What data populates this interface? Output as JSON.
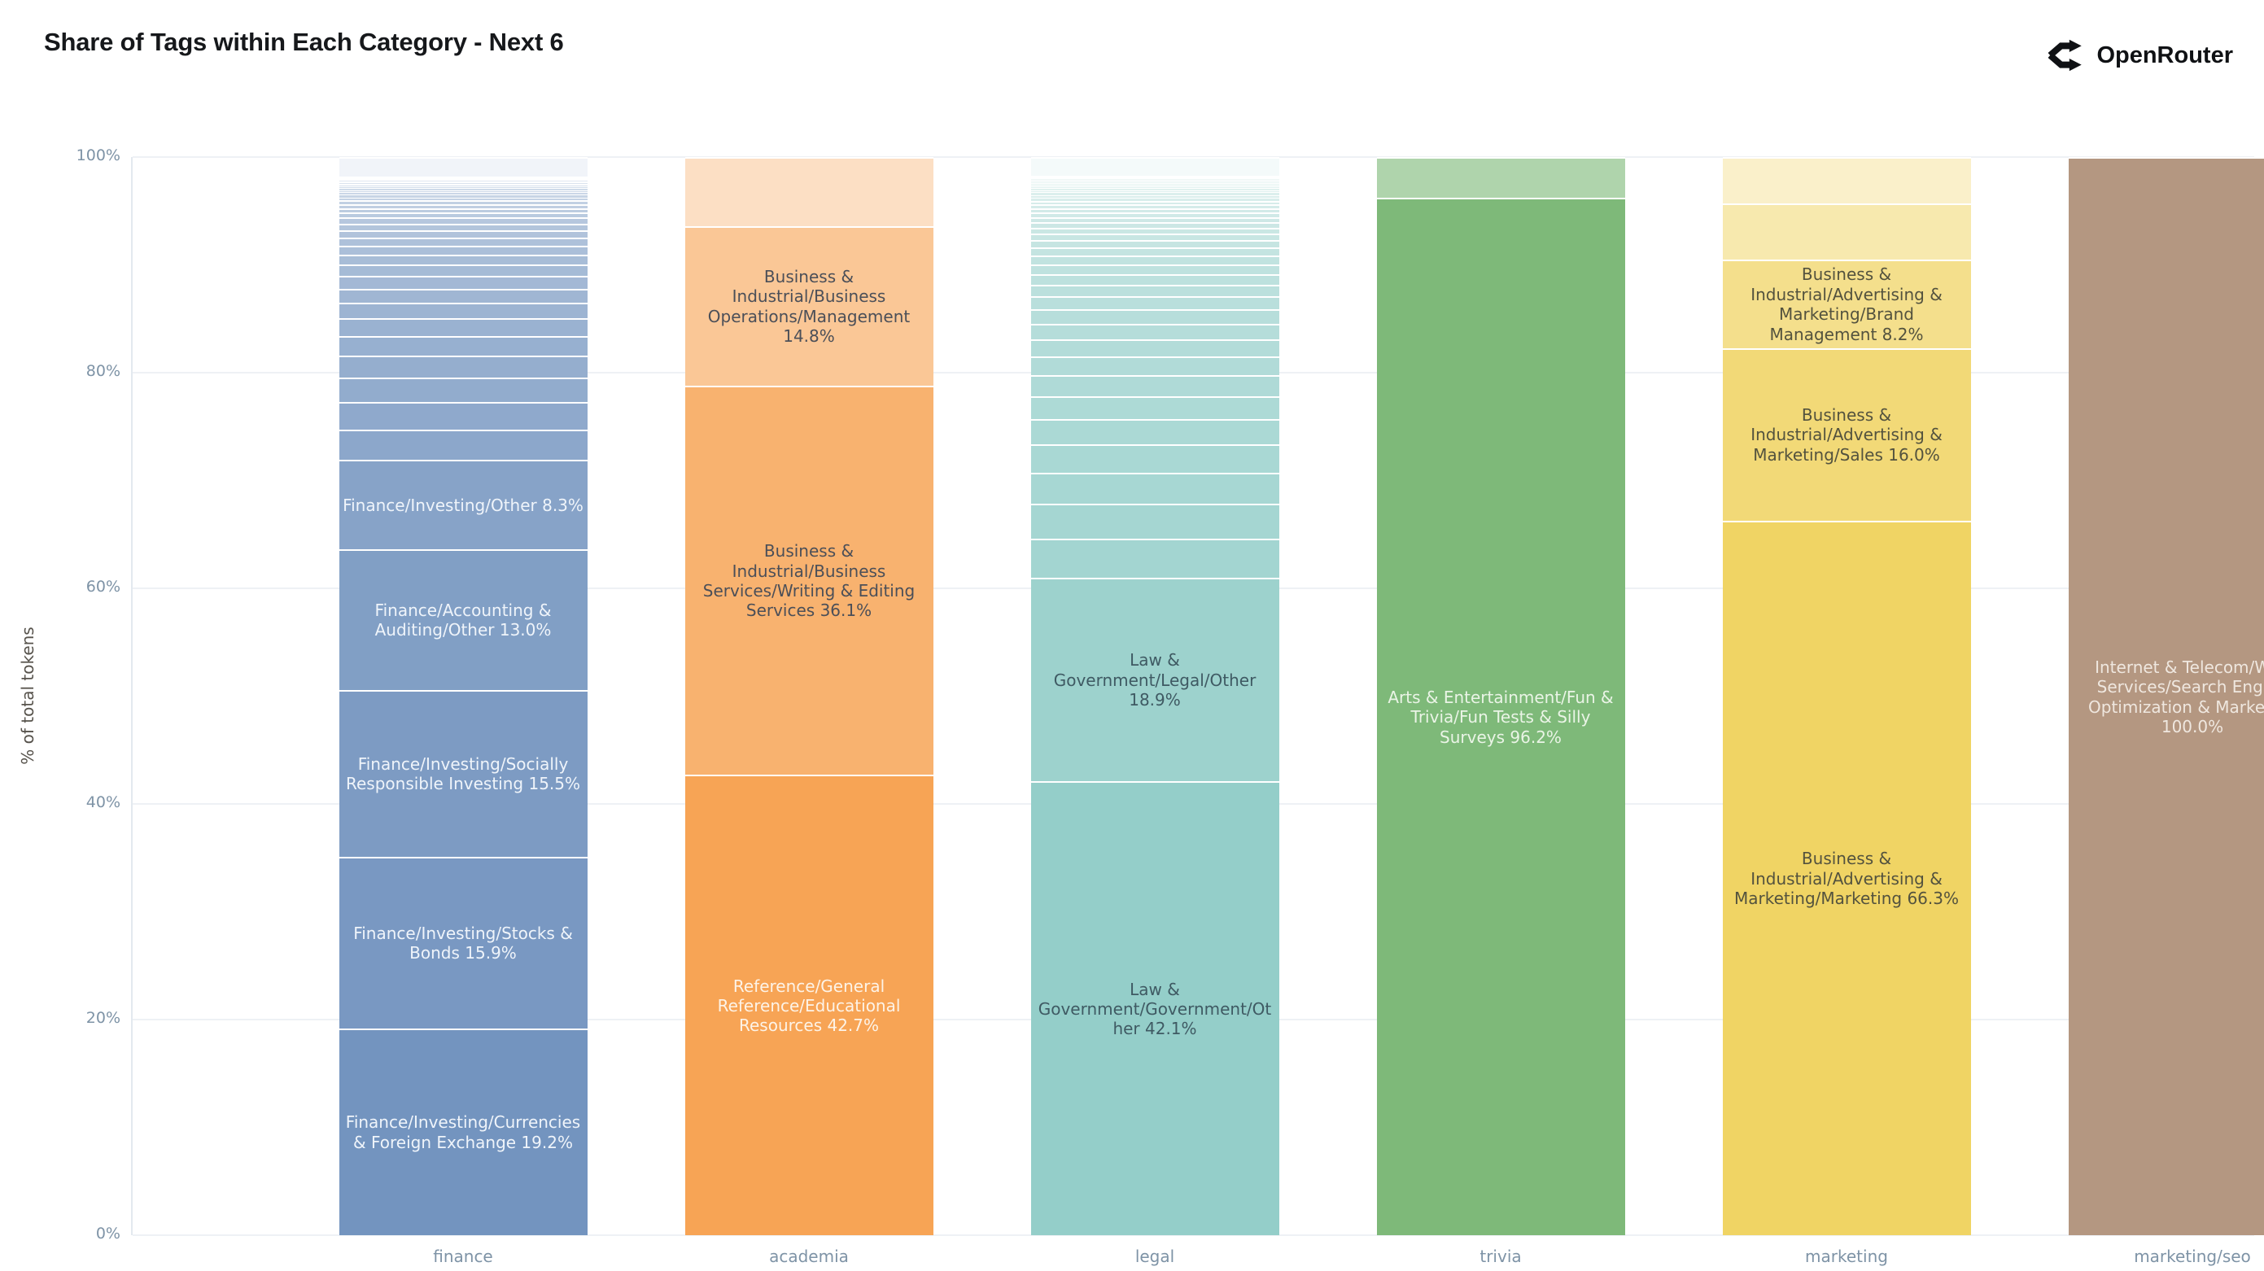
{
  "header": {
    "title": "Share of Tags within Each Category - Next 6",
    "brand": "OpenRouter"
  },
  "y_axis": {
    "label": "% of total tokens",
    "ticks": [
      {
        "value": 0,
        "label": "0%"
      },
      {
        "value": 20,
        "label": "20%"
      },
      {
        "value": 40,
        "label": "40%"
      },
      {
        "value": 60,
        "label": "60%"
      },
      {
        "value": 80,
        "label": "80%"
      },
      {
        "value": 100,
        "label": "100%"
      }
    ]
  },
  "chart_data": {
    "type": "bar",
    "stacked": true,
    "title": "Share of Tags within Each Category - Next 6",
    "ylabel": "% of total tokens",
    "ylim": [
      0,
      100
    ],
    "grid": true,
    "categories": [
      "finance",
      "academia",
      "legal",
      "trivia",
      "marketing",
      "marketing/seo"
    ],
    "bars": [
      {
        "category": "finance",
        "base_color": "#7394bf",
        "label_colors": {
          "light": "#eff4fa",
          "dark": "#47505a"
        },
        "segments": [
          {
            "label": "Finance/Investing/Currencies & Foreign Exchange",
            "pct": 19.2,
            "pct_label": "19.2%",
            "opacity": 1.0,
            "label_style": "light"
          },
          {
            "label": "Finance/Investing/Stocks & Bonds",
            "pct": 15.9,
            "pct_label": "15.9%",
            "opacity": 0.96,
            "label_style": "light"
          },
          {
            "label": "Finance/Investing/Socially Responsible Investing",
            "pct": 15.5,
            "pct_label": "15.5%",
            "opacity": 0.93,
            "label_style": "light"
          },
          {
            "label": "Finance/Accounting & Auditing/Other",
            "pct": 13.0,
            "pct_label": "13.0%",
            "opacity": 0.9,
            "label_style": "light"
          },
          {
            "label": "Finance/Investing/Other",
            "pct": 8.3,
            "pct_label": "8.3%",
            "opacity": 0.86,
            "label_style": "light"
          }
        ],
        "unlabeled_above": {
          "weights": [
            3.0,
            2.7,
            2.4,
            2.15,
            1.95,
            1.75,
            1.55,
            1.4,
            1.25,
            1.1,
            1.0,
            0.9,
            0.8,
            0.72,
            0.64,
            0.57,
            0.5,
            0.45,
            0.4,
            0.35,
            0.3,
            0.27,
            0.24,
            0.21,
            0.19,
            0.17,
            0.15,
            0.13,
            0.12,
            0.11,
            0.1,
            0.09,
            0.08,
            0.08,
            0.07,
            0.06,
            1.9
          ],
          "alpha_start": 0.82,
          "alpha_end": 0.1
        }
      },
      {
        "category": "academia",
        "base_color": "#f7a455",
        "label_colors": {
          "light": "#fdf3e7",
          "dark": "#4b4f58"
        },
        "segments": [
          {
            "label": "Reference/General Reference/Educational Resources",
            "pct": 42.7,
            "pct_label": "42.7%",
            "opacity": 1.0,
            "label_style": "light"
          },
          {
            "label": "Business & Industrial/Business Services/Writing & Editing Services",
            "pct": 36.1,
            "pct_label": "36.1%",
            "opacity": 0.85,
            "label_style": "dark"
          },
          {
            "label": "Business & Industrial/Business Operations/Management",
            "pct": 14.8,
            "pct_label": "14.8%",
            "opacity": 0.62,
            "label_style": "dark"
          }
        ],
        "unlabeled_above": {
          "weights": [
            6.4
          ],
          "alpha_start": 0.35,
          "alpha_end": 0.35
        }
      },
      {
        "category": "legal",
        "base_color": "#94cec9",
        "label_colors": {
          "light": "#f2faf9",
          "dark": "#3f5a63"
        },
        "segments": [
          {
            "label": "Law & Government/Government/Other",
            "pct": 42.1,
            "pct_label": "42.1%",
            "opacity": 1.0,
            "label_style": "dark"
          },
          {
            "label": "Law & Government/Legal/Other",
            "pct": 18.9,
            "pct_label": "18.9%",
            "opacity": 0.92,
            "label_style": "dark"
          }
        ],
        "unlabeled_above": {
          "weights": [
            3.4,
            3.0,
            2.7,
            2.45,
            2.2,
            2.0,
            1.8,
            1.65,
            1.5,
            1.35,
            1.25,
            1.12,
            1.0,
            0.92,
            0.84,
            0.76,
            0.7,
            0.64,
            0.58,
            0.53,
            0.48,
            0.44,
            0.4,
            0.36,
            0.33,
            0.3,
            0.27,
            0.25,
            0.22,
            0.2,
            0.18,
            0.17,
            0.15,
            0.14,
            0.13,
            0.12,
            0.11,
            0.1,
            0.09,
            0.08,
            1.6
          ],
          "alpha_start": 0.86,
          "alpha_end": 0.1
        }
      },
      {
        "category": "trivia",
        "base_color": "#7eb979",
        "label_colors": {
          "light": "#eaf4e6",
          "dark": "#3f5340"
        },
        "segments": [
          {
            "label": "Arts & Entertainment/Fun & Trivia/Fun Tests & Silly Surveys",
            "pct": 96.2,
            "pct_label": "96.2%",
            "opacity": 1.0,
            "label_style": "light"
          }
        ],
        "unlabeled_above": {
          "weights": [
            3.8
          ],
          "alpha_start": 0.62,
          "alpha_end": 0.62
        }
      },
      {
        "category": "marketing",
        "base_color": "#f0d464",
        "label_colors": {
          "light": "#fdfaef",
          "dark": "#53523e"
        },
        "segments": [
          {
            "label": "Business & Industrial/Advertising & Marketing/Marketing",
            "pct": 66.3,
            "pct_label": "66.3%",
            "opacity": 1.0,
            "label_style": "dark"
          },
          {
            "label": "Business & Industrial/Advertising & Marketing/Sales",
            "pct": 16.0,
            "pct_label": "16.0%",
            "opacity": 0.88,
            "label_style": "dark"
          },
          {
            "label": "Business & Industrial/Advertising & Marketing/Brand Management",
            "pct": 8.2,
            "pct_label": "8.2%",
            "opacity": 0.74,
            "label_style": "dark"
          }
        ],
        "unlabeled_above": {
          "weights": [
            5.2,
            4.3
          ],
          "alpha_start": 0.52,
          "alpha_end": 0.34
        }
      },
      {
        "category": "marketing/seo",
        "base_color": "#b49781",
        "label_colors": {
          "light": "#efe7df",
          "dark": "#4d4038"
        },
        "segments": [
          {
            "label": "Internet & Telecom/Web Services/Search Engine Optimization & Marketing",
            "pct": 100.0,
            "pct_label": "100.0%",
            "opacity": 1.0,
            "label_style": "light"
          }
        ],
        "unlabeled_above": {
          "weights": [],
          "alpha_start": 1.0,
          "alpha_end": 1.0
        }
      }
    ]
  }
}
